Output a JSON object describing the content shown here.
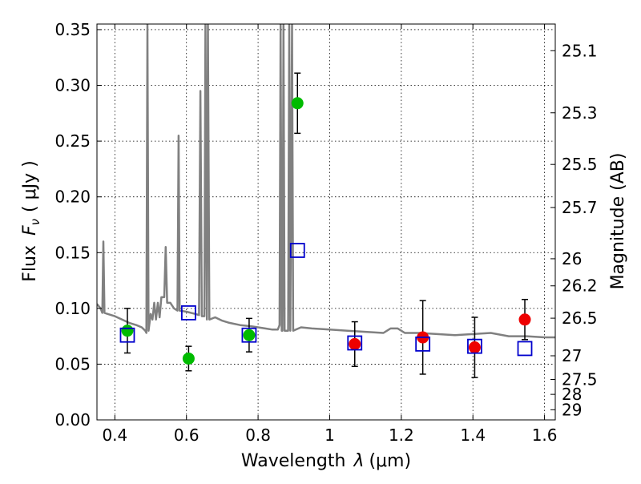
{
  "chart_data": {
    "type": "scatter",
    "xlabel_main": "Wavelength",
    "xlabel_symbol": "λ",
    "xlabel_unit": "(μm)",
    "ylabel_text": "Flux",
    "ylabel_symbol": "F",
    "ylabel_sub": "ν",
    "ylabel_unit": "( μJy )",
    "ylabel_right": "Magnitude (AB)",
    "xlim": [
      0.35,
      1.63
    ],
    "ylim": [
      0.0,
      0.355
    ],
    "x_ticks": [
      0.4,
      0.6,
      0.8,
      1.0,
      1.2,
      1.4,
      1.6
    ],
    "x_tick_labels": [
      "0.4",
      "0.6",
      "0.8",
      "1",
      "1.2",
      "1.4",
      "1.6"
    ],
    "y_ticks": [
      0.0,
      0.05,
      0.1,
      0.15,
      0.2,
      0.25,
      0.3,
      0.35
    ],
    "y_tick_labels": [
      "0.00",
      "0.05",
      "0.10",
      "0.15",
      "0.20",
      "0.25",
      "0.30",
      "0.35"
    ],
    "right_ticks": [
      {
        "label": "25.1",
        "flux": 0.3311
      },
      {
        "label": "25.3",
        "flux": 0.2754
      },
      {
        "label": "25.5",
        "flux": 0.2291
      },
      {
        "label": "25.7",
        "flux": 0.1905
      },
      {
        "label": "26",
        "flux": 0.1445
      },
      {
        "label": "26.2",
        "flux": 0.1202
      },
      {
        "label": "26.5",
        "flux": 0.0912
      },
      {
        "label": "27",
        "flux": 0.0575
      },
      {
        "label": "27.5",
        "flux": 0.0363
      },
      {
        "label": "28",
        "flux": 0.0229
      },
      {
        "label": "29",
        "flux": 0.0091
      }
    ],
    "grid": true,
    "colors": {
      "model": "#808080",
      "green": "#00bb00",
      "red": "#ee0000",
      "blue": "#0000cc",
      "errorbar": "#000000"
    },
    "model_spectrum": {
      "points": [
        [
          0.35,
          0.104
        ],
        [
          0.36,
          0.1
        ],
        [
          0.365,
          0.096
        ],
        [
          0.368,
          0.16
        ],
        [
          0.371,
          0.096
        ],
        [
          0.38,
          0.095
        ],
        [
          0.4,
          0.093
        ],
        [
          0.42,
          0.09
        ],
        [
          0.44,
          0.087
        ],
        [
          0.46,
          0.085
        ],
        [
          0.475,
          0.083
        ],
        [
          0.485,
          0.08
        ],
        [
          0.488,
          0.078
        ],
        [
          0.491,
          0.355
        ],
        [
          0.494,
          0.08
        ],
        [
          0.5,
          0.095
        ],
        [
          0.505,
          0.09
        ],
        [
          0.51,
          0.105
        ],
        [
          0.515,
          0.09
        ],
        [
          0.52,
          0.105
        ],
        [
          0.525,
          0.092
        ],
        [
          0.53,
          0.11
        ],
        [
          0.538,
          0.11
        ],
        [
          0.542,
          0.155
        ],
        [
          0.546,
          0.105
        ],
        [
          0.555,
          0.105
        ],
        [
          0.565,
          0.1
        ],
        [
          0.575,
          0.098
        ],
        [
          0.578,
          0.255
        ],
        [
          0.581,
          0.098
        ],
        [
          0.6,
          0.097
        ],
        [
          0.625,
          0.095
        ],
        [
          0.635,
          0.094
        ],
        [
          0.639,
          0.295
        ],
        [
          0.643,
          0.093
        ],
        [
          0.65,
          0.093
        ],
        [
          0.653,
          0.355
        ],
        [
          0.657,
          0.09
        ],
        [
          0.66,
          0.355
        ],
        [
          0.664,
          0.09
        ],
        [
          0.68,
          0.092
        ],
        [
          0.7,
          0.089
        ],
        [
          0.72,
          0.087
        ],
        [
          0.75,
          0.085
        ],
        [
          0.78,
          0.084
        ],
        [
          0.8,
          0.083
        ],
        [
          0.82,
          0.082
        ],
        [
          0.84,
          0.081
        ],
        [
          0.855,
          0.081
        ],
        [
          0.86,
          0.085
        ],
        [
          0.863,
          0.355
        ],
        [
          0.866,
          0.08
        ],
        [
          0.868,
          0.08
        ],
        [
          0.871,
          0.355
        ],
        [
          0.874,
          0.08
        ],
        [
          0.884,
          0.08
        ],
        [
          0.887,
          0.355
        ],
        [
          0.89,
          0.08
        ],
        [
          0.895,
          0.355
        ],
        [
          0.898,
          0.08
        ],
        [
          0.92,
          0.083
        ],
        [
          0.95,
          0.082
        ],
        [
          1.0,
          0.081
        ],
        [
          1.05,
          0.08
        ],
        [
          1.1,
          0.079
        ],
        [
          1.15,
          0.078
        ],
        [
          1.17,
          0.082
        ],
        [
          1.19,
          0.082
        ],
        [
          1.21,
          0.078
        ],
        [
          1.25,
          0.078
        ],
        [
          1.3,
          0.077
        ],
        [
          1.35,
          0.076
        ],
        [
          1.4,
          0.077
        ],
        [
          1.45,
          0.078
        ],
        [
          1.5,
          0.075
        ],
        [
          1.55,
          0.075
        ],
        [
          1.6,
          0.074
        ],
        [
          1.63,
          0.074
        ]
      ]
    },
    "series": [
      {
        "marker": "circle",
        "color_key": "green",
        "points": [
          {
            "x": 0.435,
            "y": 0.08,
            "err": 0.02
          },
          {
            "x": 0.606,
            "y": 0.055,
            "err": 0.011
          },
          {
            "x": 0.775,
            "y": 0.076,
            "err": 0.015
          },
          {
            "x": 0.91,
            "y": 0.284,
            "err": 0.027
          }
        ]
      },
      {
        "marker": "circle",
        "color_key": "red",
        "points": [
          {
            "x": 1.07,
            "y": 0.068,
            "err": 0.02
          },
          {
            "x": 1.26,
            "y": 0.074,
            "err": 0.033
          },
          {
            "x": 1.405,
            "y": 0.065,
            "err": 0.027
          },
          {
            "x": 1.545,
            "y": 0.09,
            "err": 0.018
          }
        ]
      },
      {
        "marker": "square-open",
        "color_key": "blue",
        "points": [
          {
            "x": 0.435,
            "y": 0.076
          },
          {
            "x": 0.606,
            "y": 0.096
          },
          {
            "x": 0.775,
            "y": 0.076
          },
          {
            "x": 0.91,
            "y": 0.152
          },
          {
            "x": 1.07,
            "y": 0.069
          },
          {
            "x": 1.26,
            "y": 0.068
          },
          {
            "x": 1.405,
            "y": 0.066
          },
          {
            "x": 1.545,
            "y": 0.064
          }
        ]
      }
    ]
  }
}
